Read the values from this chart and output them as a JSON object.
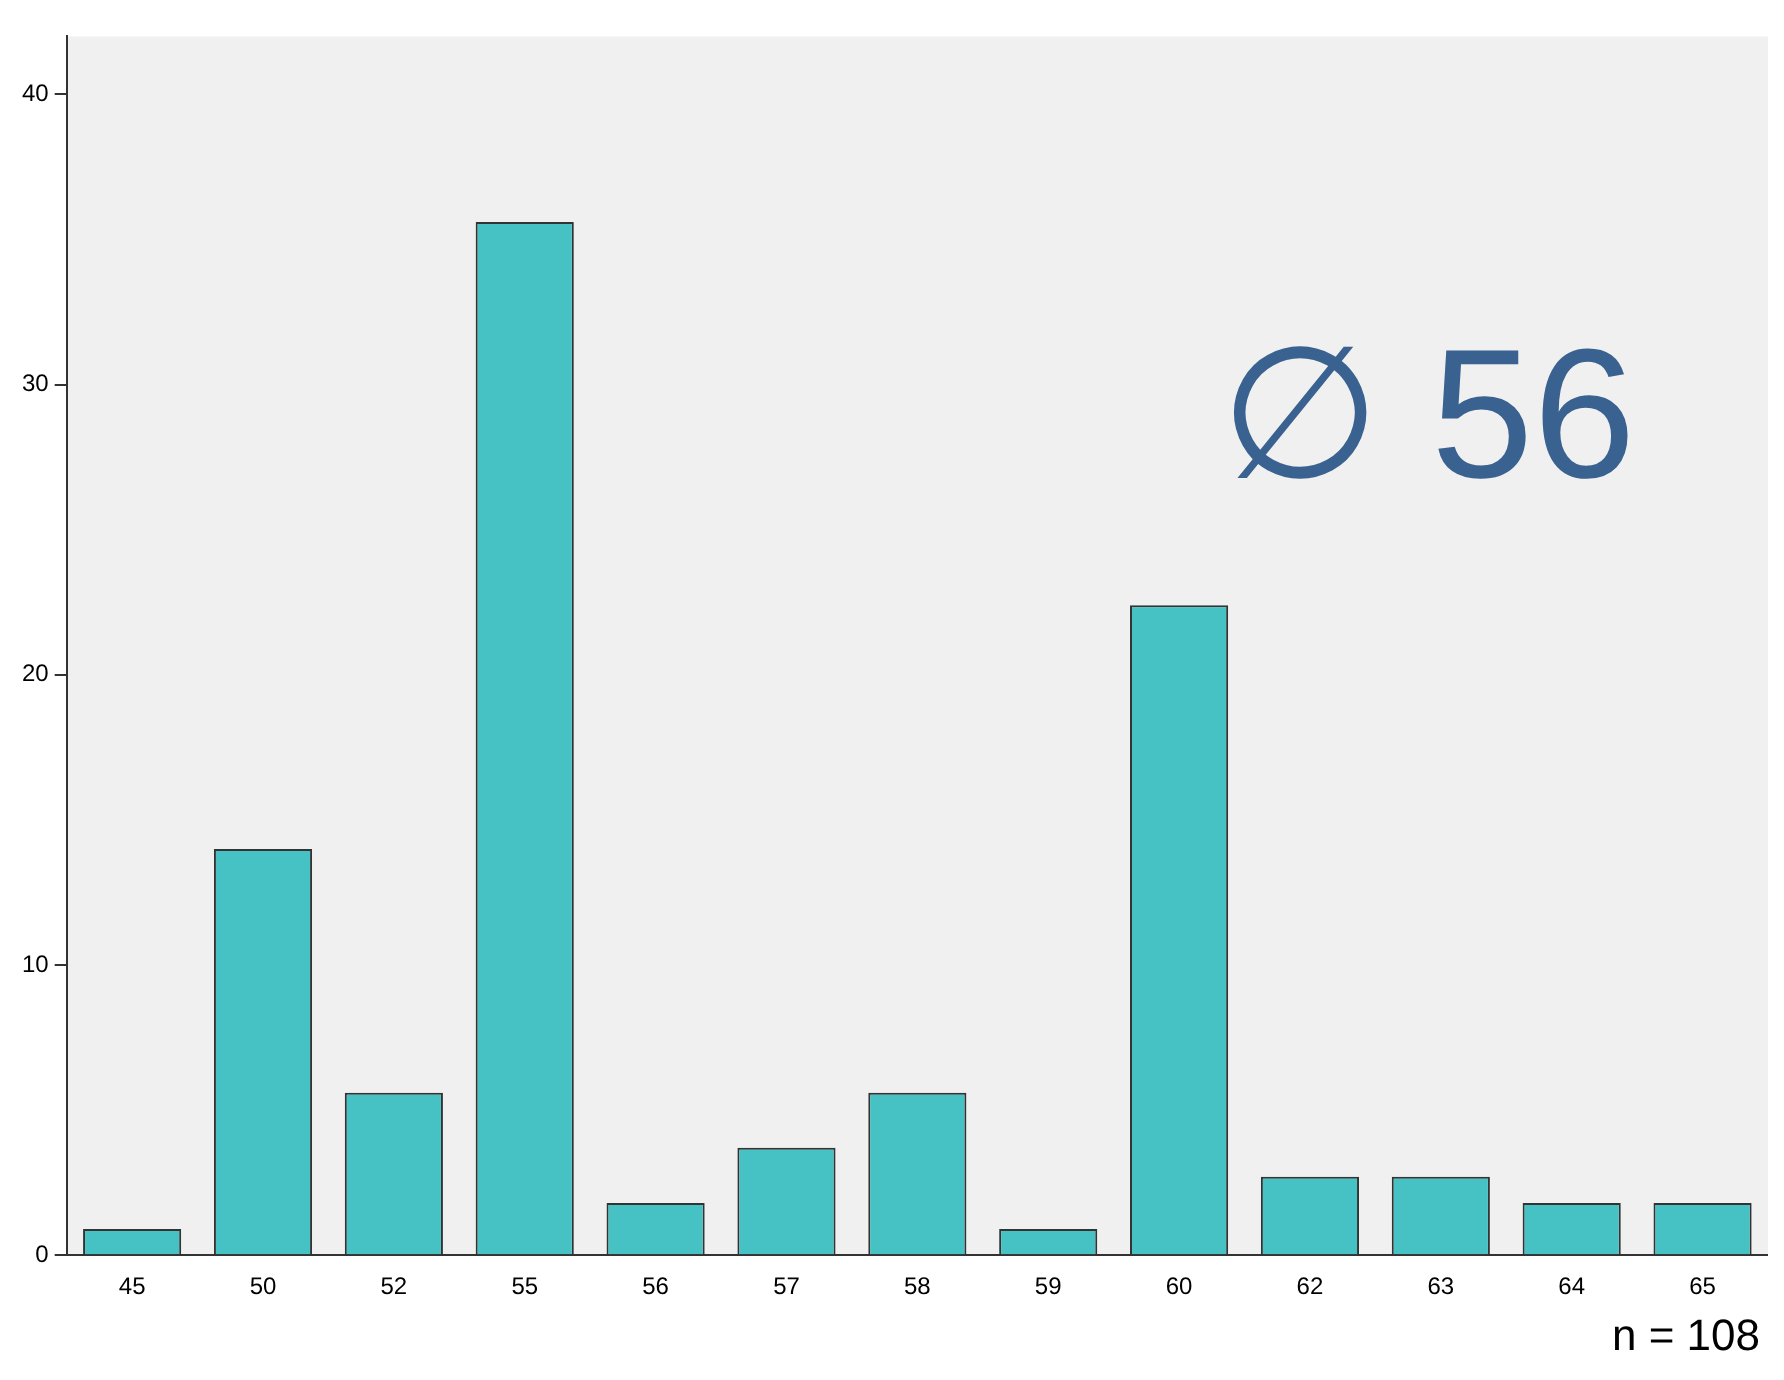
{
  "chart_data": {
    "type": "bar",
    "categories": [
      "45",
      "50",
      "52",
      "55",
      "56",
      "57",
      "58",
      "59",
      "60",
      "62",
      "63",
      "64",
      "65"
    ],
    "values": [
      0.9,
      14.0,
      5.6,
      35.6,
      1.8,
      3.7,
      5.6,
      0.9,
      22.4,
      2.7,
      2.7,
      1.8,
      1.8
    ],
    "color": "#46c2c5",
    "ylim": [
      0,
      42
    ],
    "yticks": [
      0,
      10,
      20,
      30,
      40
    ],
    "grid": false,
    "legend": false,
    "annotations": [
      "∅ 56",
      "n = 108"
    ]
  }
}
